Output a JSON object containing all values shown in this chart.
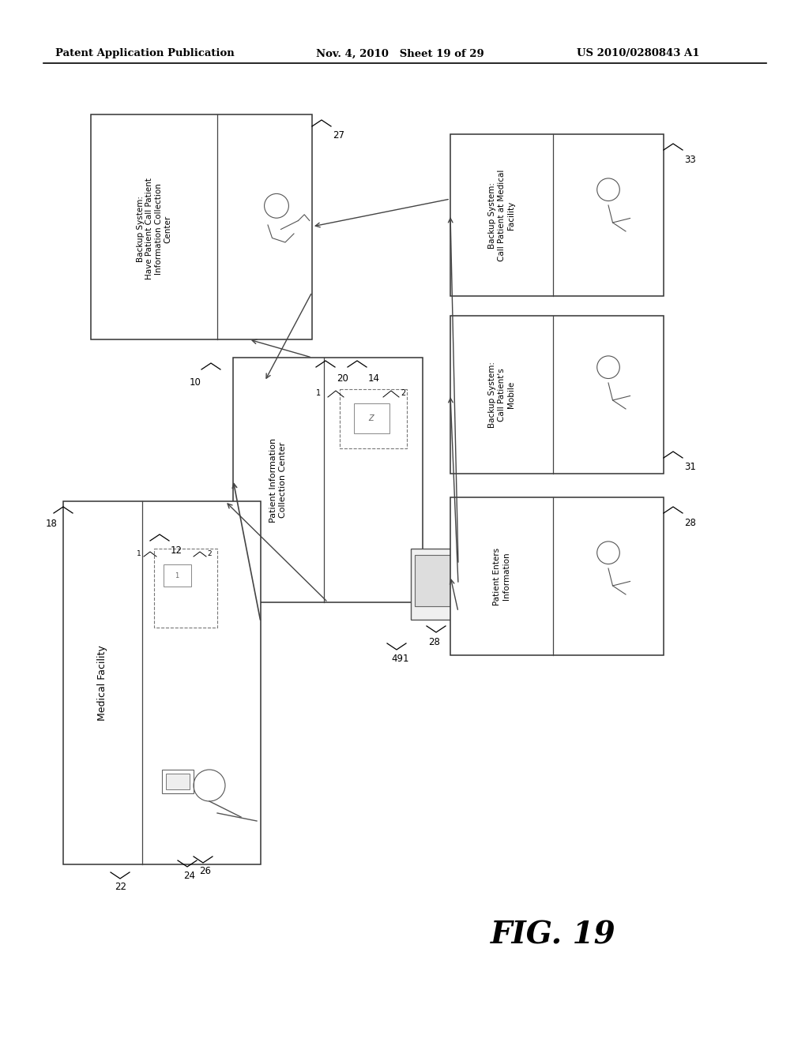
{
  "header_left": "Patent Application Publication",
  "header_mid": "Nov. 4, 2010   Sheet 19 of 29",
  "header_right": "US 2010/0280843 A1",
  "figure_label": "FIG. 19",
  "bg_color": "#ffffff"
}
